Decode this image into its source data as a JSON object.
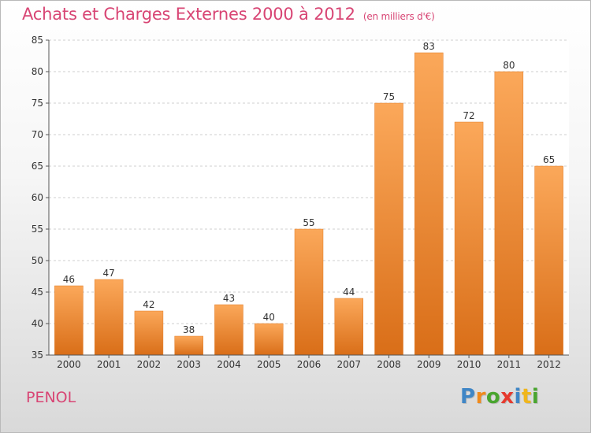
{
  "title": "Achats et Charges Externes 2000 à 2012",
  "subtitle": "(en milliers d'€)",
  "commune": "PENOL",
  "logo": {
    "letters": [
      "P",
      "r",
      "o",
      "x",
      "i",
      "t",
      "i"
    ],
    "colors": [
      "#3f86c6",
      "#f08a1c",
      "#49a52f",
      "#e63a2e",
      "#3f86c6",
      "#f0b61c",
      "#49a52f"
    ]
  },
  "chart_data": {
    "type": "bar",
    "categories": [
      "2000",
      "2001",
      "2002",
      "2003",
      "2004",
      "2005",
      "2006",
      "2007",
      "2008",
      "2009",
      "2010",
      "2011",
      "2012"
    ],
    "values": [
      46,
      47,
      42,
      38,
      43,
      40,
      55,
      44,
      75,
      83,
      72,
      80,
      65
    ],
    "title": "Achats et Charges Externes 2000 à 2012",
    "ylim": [
      35,
      85
    ],
    "yticks": [
      35,
      40,
      45,
      50,
      55,
      60,
      65,
      70,
      75,
      80,
      85
    ],
    "grid": true,
    "bar_color": "#ee8a36"
  }
}
